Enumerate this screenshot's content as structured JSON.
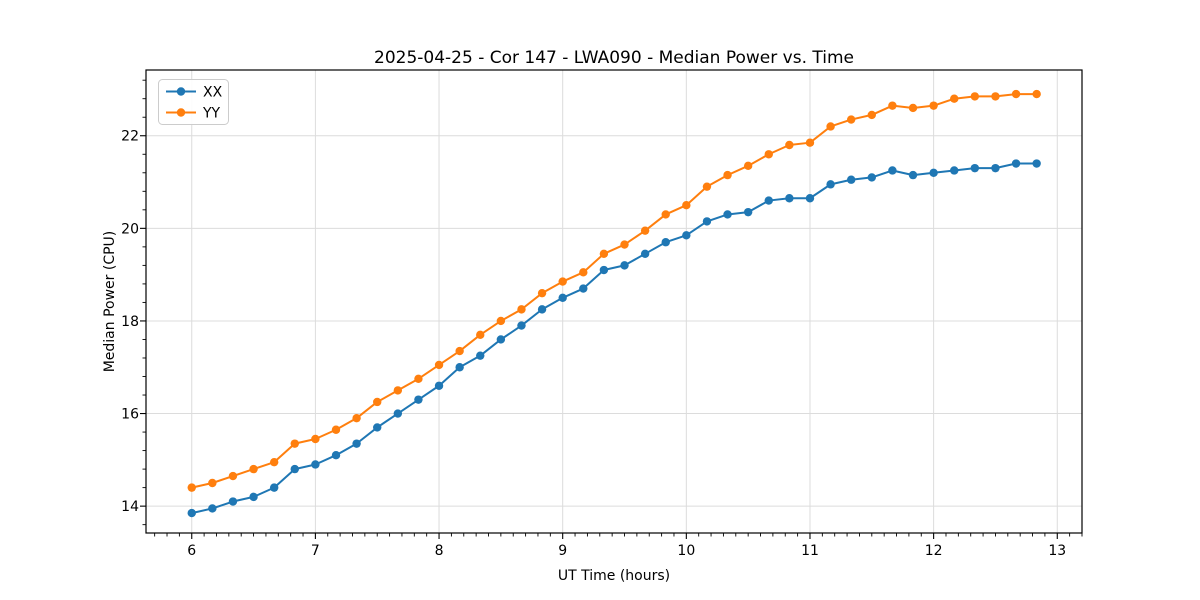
{
  "figure": {
    "background": "#ffffff"
  },
  "chart_data": {
    "type": "line",
    "title": "2025-04-25 - Cor 147 - LWA090 - Median Power vs. Time",
    "xlabel": "UT Time (hours)",
    "ylabel": "Median Power (CPU)",
    "xlim": [
      5.63,
      13.2
    ],
    "ylim": [
      13.42,
      23.42
    ],
    "xticks": [
      6,
      7,
      8,
      9,
      10,
      11,
      12,
      13
    ],
    "yticks": [
      14,
      16,
      18,
      20,
      22
    ],
    "x_minor_step": 0.1,
    "y_minor_step": 0.4,
    "grid": true,
    "legend_position": "upper left",
    "x": [
      6.0,
      6.1667,
      6.3333,
      6.5,
      6.6667,
      6.8333,
      7.0,
      7.1667,
      7.3333,
      7.5,
      7.6667,
      7.8333,
      8.0,
      8.1667,
      8.3333,
      8.5,
      8.6667,
      8.8333,
      9.0,
      9.1667,
      9.3333,
      9.5,
      9.6667,
      9.8333,
      10.0,
      10.1667,
      10.3333,
      10.5,
      10.6667,
      10.8333,
      11.0,
      11.1667,
      11.3333,
      11.5,
      11.6667,
      11.8333,
      12.0,
      12.1667,
      12.3333,
      12.5,
      12.6667,
      12.8333
    ],
    "series": [
      {
        "name": "XX",
        "color": "#1f77b4",
        "values": [
          13.85,
          13.95,
          14.1,
          14.2,
          14.4,
          14.8,
          14.9,
          15.1,
          15.35,
          15.7,
          16.0,
          16.3,
          16.6,
          17.0,
          17.25,
          17.6,
          17.9,
          18.25,
          18.5,
          18.7,
          19.1,
          19.2,
          19.45,
          19.7,
          19.85,
          20.15,
          20.3,
          20.35,
          20.6,
          20.65,
          20.65,
          20.95,
          21.05,
          21.1,
          21.25,
          21.15,
          21.2,
          21.25,
          21.3,
          21.3,
          21.4,
          21.4
        ]
      },
      {
        "name": "YY",
        "color": "#ff7f0e",
        "values": [
          14.4,
          14.5,
          14.65,
          14.8,
          14.95,
          15.35,
          15.45,
          15.65,
          15.9,
          16.25,
          16.5,
          16.75,
          17.05,
          17.35,
          17.7,
          18.0,
          18.25,
          18.6,
          18.85,
          19.05,
          19.45,
          19.65,
          19.95,
          20.3,
          20.5,
          20.9,
          21.15,
          21.35,
          21.6,
          21.8,
          21.85,
          22.2,
          22.35,
          22.45,
          22.65,
          22.6,
          22.65,
          22.8,
          22.85,
          22.85,
          22.9,
          22.9
        ]
      }
    ]
  },
  "colors": {
    "grid": "#dcdcdc",
    "spine": "#000000",
    "tick": "#000000",
    "text": "#000000",
    "legend_border": "#cccccc",
    "legend_bg": "#ffffff"
  }
}
